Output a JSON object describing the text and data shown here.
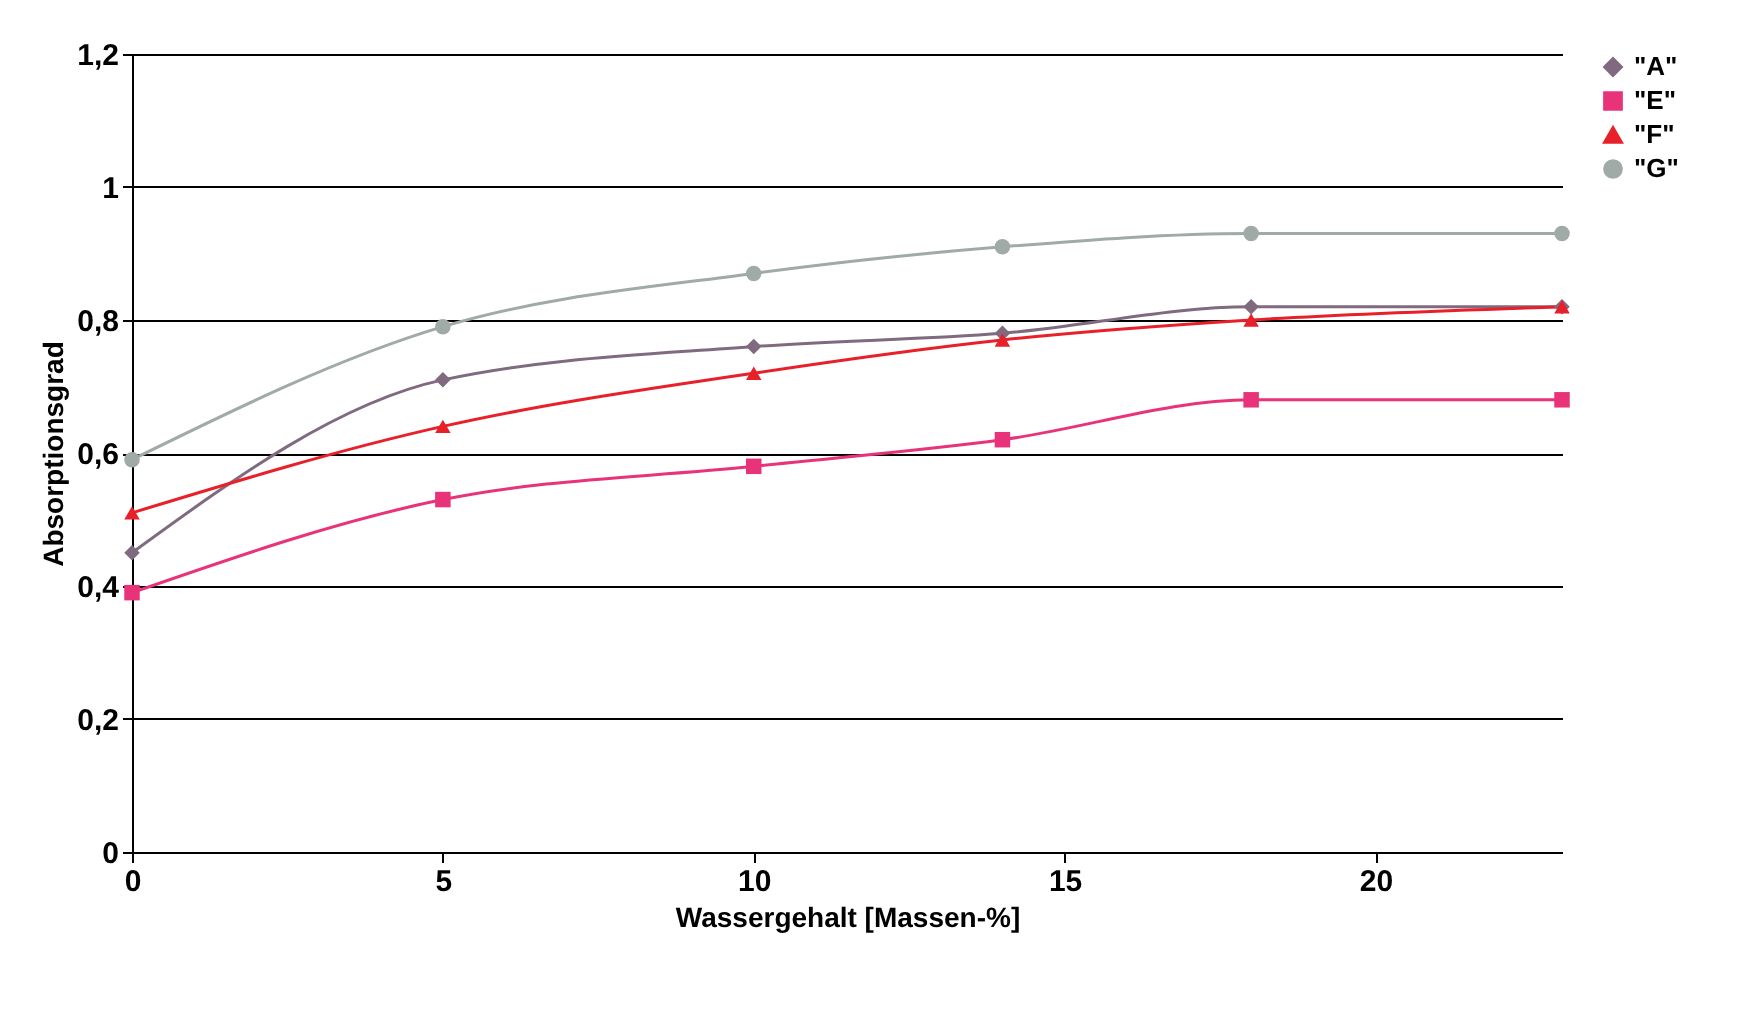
{
  "chart_data": {
    "type": "line",
    "xlabel": "Wassergehalt [Massen-%]",
    "ylabel": "Absorptionsgrad",
    "x": [
      0,
      5,
      10,
      14,
      18,
      23
    ],
    "xlim": [
      0,
      23
    ],
    "xticks": [
      0,
      5,
      10,
      15,
      20
    ],
    "ylim": [
      0,
      1.2
    ],
    "yticks": [
      0,
      {
        "value": 0.2,
        "label": "0,2"
      },
      {
        "value": 0.4,
        "label": "0,4"
      },
      {
        "value": 0.6,
        "label": "0,6"
      },
      {
        "value": 0.8,
        "label": "0,8"
      },
      1,
      {
        "value": 1.2,
        "label": "1,2"
      }
    ],
    "grid": "y",
    "legend": "right",
    "line_style": "solid",
    "series": [
      {
        "name": "\"A\"",
        "color": "#7f6a7f",
        "marker": "diamond",
        "values": [
          0.45,
          0.71,
          0.76,
          0.78,
          0.82,
          0.82
        ]
      },
      {
        "name": "\"E\"",
        "color": "#e8337a",
        "marker": "square",
        "values": [
          0.39,
          0.53,
          0.58,
          0.62,
          0.68,
          0.68
        ]
      },
      {
        "name": "\"F\"",
        "color": "#e8202a",
        "marker": "triangle",
        "values": [
          0.51,
          0.64,
          0.72,
          0.77,
          0.8,
          0.82
        ]
      },
      {
        "name": "\"G\"",
        "color": "#a0aaa6",
        "marker": "circle",
        "values": [
          0.59,
          0.79,
          0.87,
          0.91,
          0.93,
          0.93
        ]
      }
    ]
  }
}
